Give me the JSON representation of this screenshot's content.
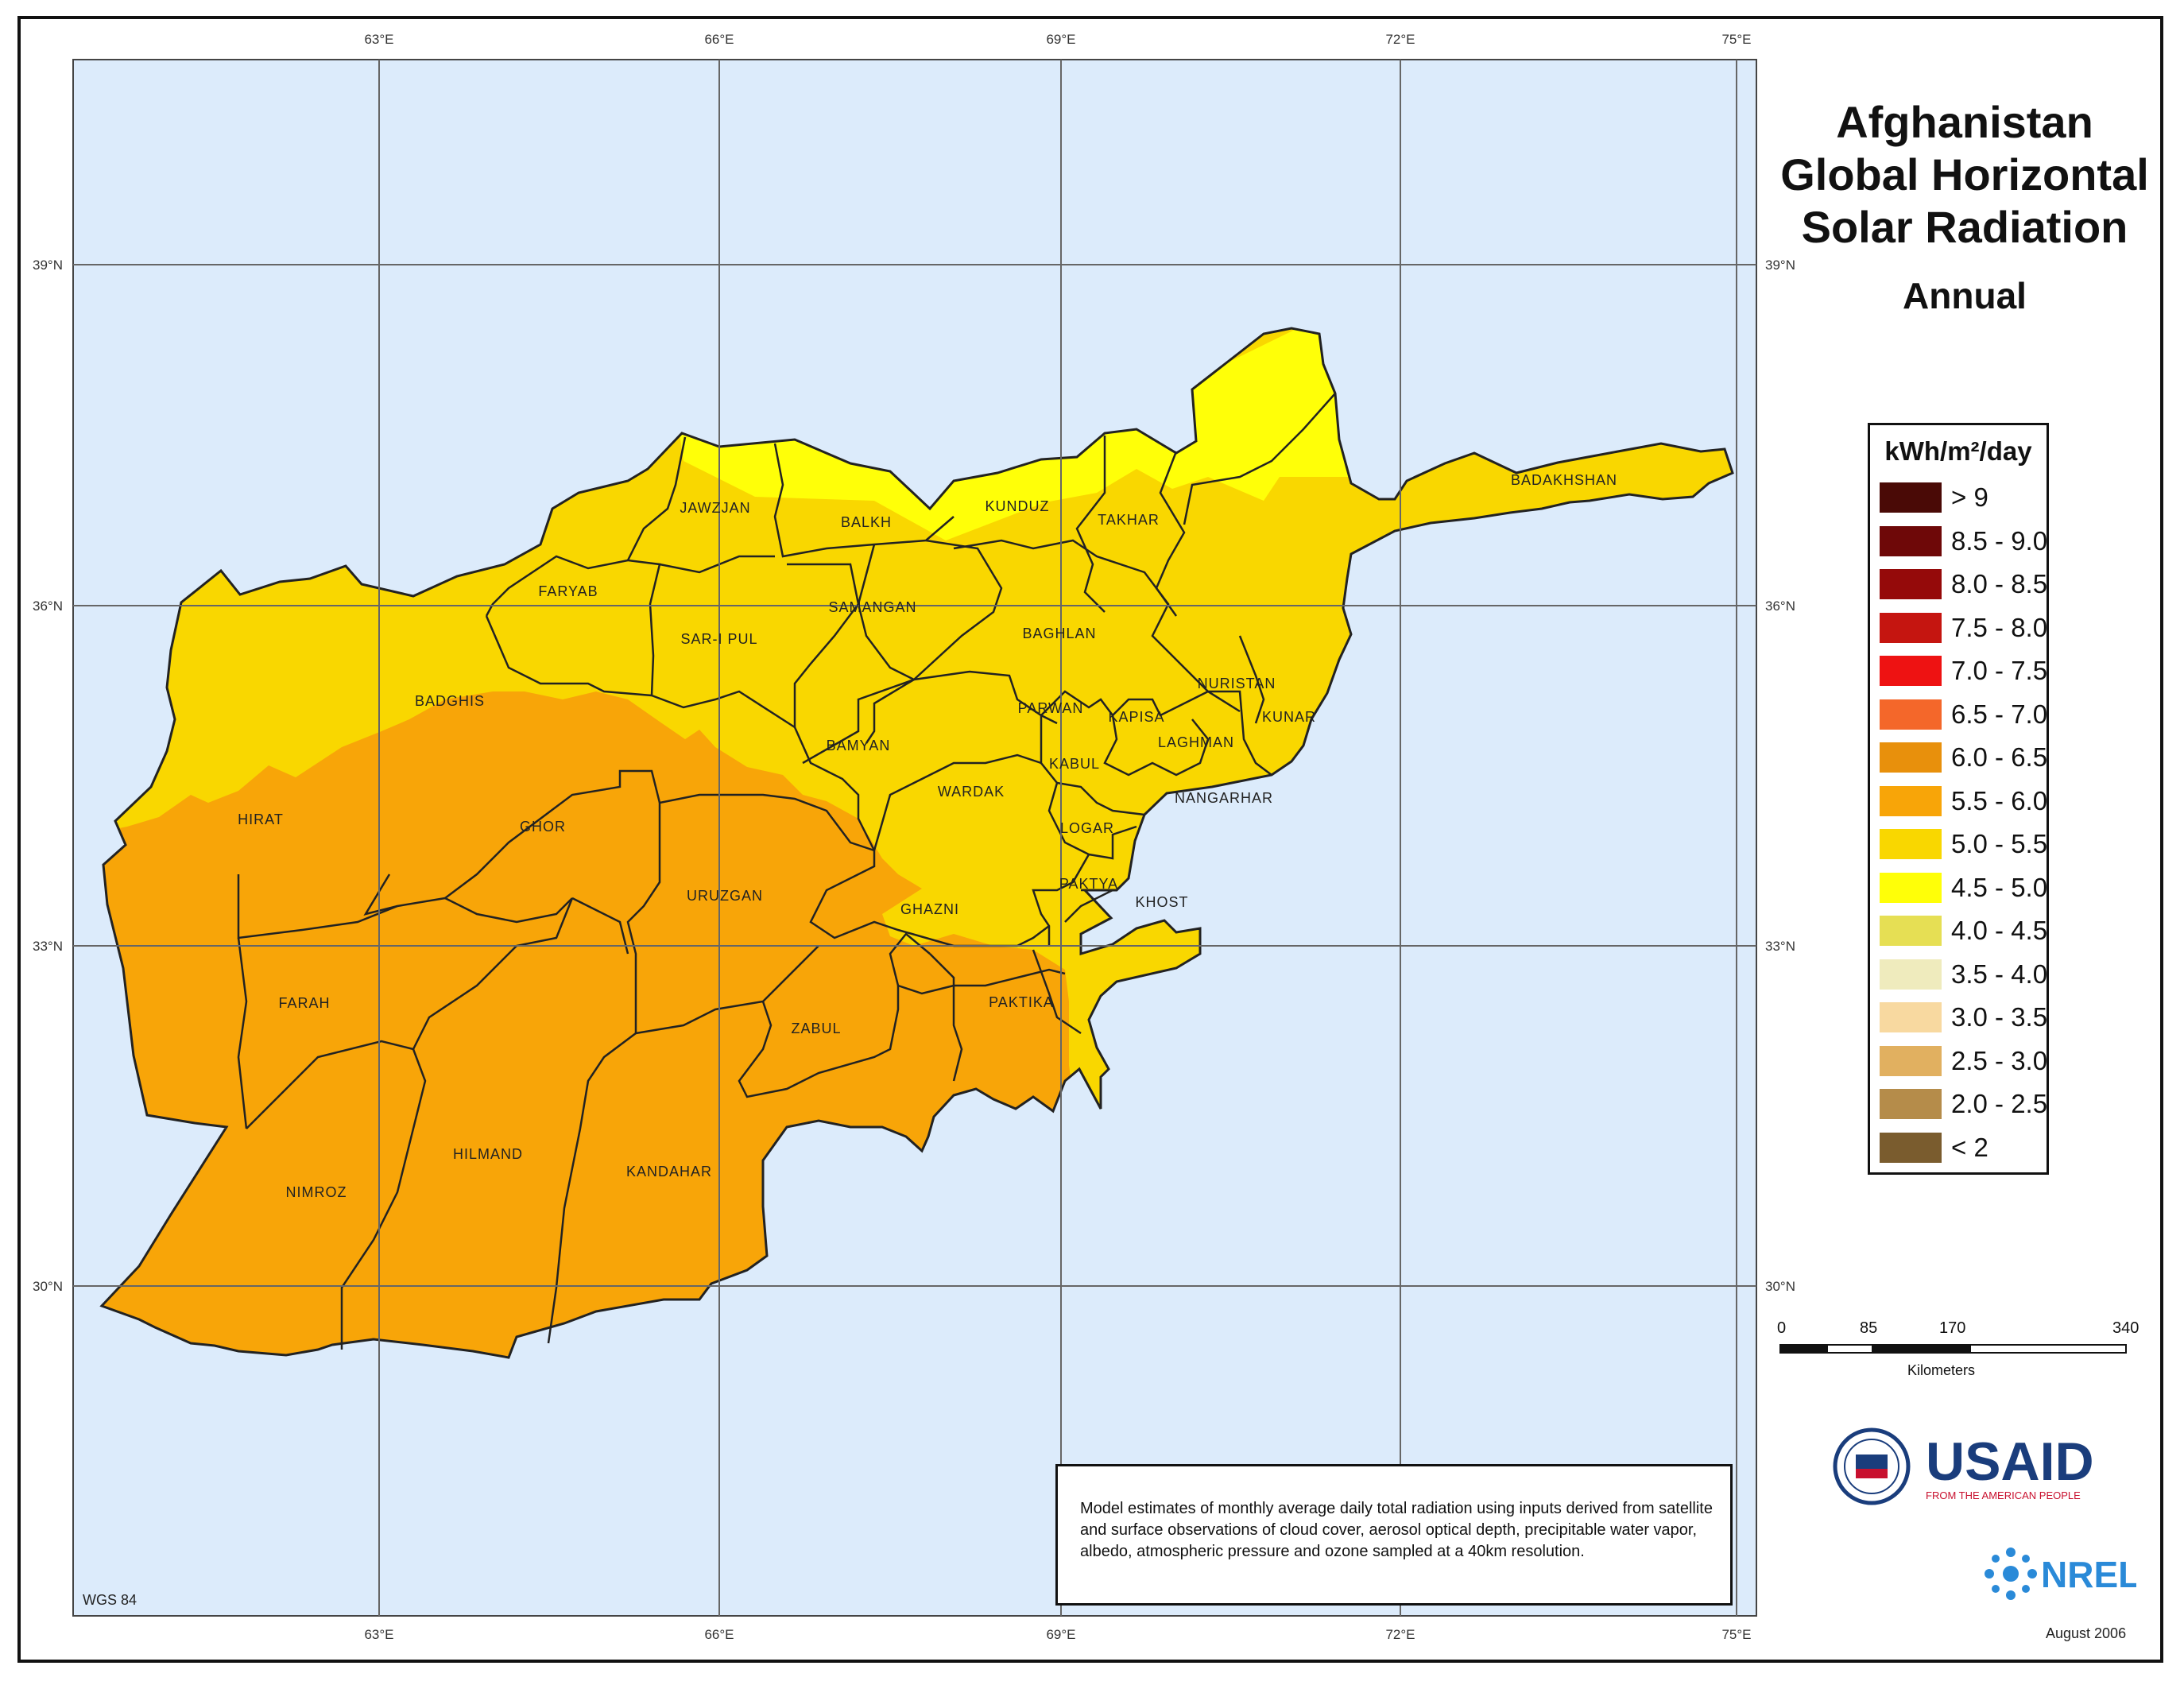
{
  "title": {
    "line1": "Afghanistan",
    "line2": "Global Horizontal",
    "line3": "Solar Radiation",
    "line4": "Annual"
  },
  "grid": {
    "lon_labels": [
      "63°E",
      "66°E",
      "69°E",
      "72°E",
      "75°E"
    ],
    "lat_labels": [
      "39°N",
      "36°N",
      "33°N",
      "30°N"
    ]
  },
  "provinces": [
    "JAWZJAN",
    "BALKH",
    "KUNDUZ",
    "TAKHAR",
    "BADAKHSHAN",
    "FARYAB",
    "SAMANGAN",
    "SAR-I PUL",
    "BAGHLAN",
    "BADGHIS",
    "NURISTAN",
    "PARWAN",
    "KAPISA",
    "KUNAR",
    "BAMYAN",
    "KABUL",
    "LAGHMAN",
    "NANGARHAR",
    "HIRAT",
    "GHOR",
    "WARDAK",
    "LOGAR",
    "URUZGAN",
    "PAKTYA",
    "KHOST",
    "GHAZNI",
    "FARAH",
    "ZABUL",
    "PAKTIKA",
    "HILMAND",
    "KANDAHAR",
    "NIMROZ"
  ],
  "legend": {
    "title": "kWh/m²/day",
    "classes": [
      {
        "label": "> 9",
        "color": "#4a0a06"
      },
      {
        "label": "8.5 - 9.0",
        "color": "#6e0808"
      },
      {
        "label": "8.0 - 8.5",
        "color": "#950a0a"
      },
      {
        "label": "7.5 - 8.0",
        "color": "#c51510"
      },
      {
        "label": "7.0 - 7.5",
        "color": "#ee1212"
      },
      {
        "label": "6.5 - 7.0",
        "color": "#f4672a"
      },
      {
        "label": "6.0 - 6.5",
        "color": "#e8900c"
      },
      {
        "label": "5.5 - 6.0",
        "color": "#f8a508"
      },
      {
        "label": "5.0 - 5.5",
        "color": "#f9d700"
      },
      {
        "label": "4.5 - 5.0",
        "color": "#ffff08"
      },
      {
        "label": "4.0 - 4.5",
        "color": "#e6df54"
      },
      {
        "label": "3.5 - 4.0",
        "color": "#efebbd"
      },
      {
        "label": "3.0 - 3.5",
        "color": "#f8d9a0"
      },
      {
        "label": "2.5 - 3.0",
        "color": "#e1b060"
      },
      {
        "label": "2.0 - 2.5",
        "color": "#b58c4a"
      },
      {
        "label": "< 2",
        "color": "#7a5c2e"
      }
    ]
  },
  "scale_bar": {
    "ticks": [
      "0",
      "85",
      "170",
      "340"
    ],
    "unit": "Kilometers"
  },
  "note": "Model estimates of monthly average daily total radiation using inputs derived from satellite and surface observations of cloud cover, aerosol optical depth, precipitable water vapor, albedo, atmospheric pressure and ozone sampled at a 40km resolution.",
  "datum": "WGS 84",
  "date": "August 2006",
  "logos": {
    "usaid": "USAID",
    "usaid_tagline": "FROM THE AMERICAN PEOPLE",
    "nrel": "NREL"
  },
  "colors": {
    "water": "#dcebfb",
    "zone_north": "#f9d700",
    "zone_northeast": "#ffff08",
    "zone_south": "#f8a508"
  }
}
